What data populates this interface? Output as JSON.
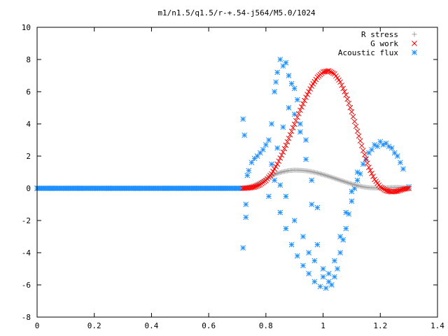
{
  "chart_data": {
    "type": "scatter",
    "title": "m1/n1.5/q1.5/r-+.54-j564/M5.0/1024",
    "xlim": [
      0,
      1.4
    ],
    "ylim": [
      -8,
      10
    ],
    "x_ticks": [
      "0",
      "0.2",
      "0.4",
      "0.6",
      "0.8",
      "1",
      "1.2",
      "1.4"
    ],
    "y_ticks": [
      "-8",
      "-6",
      "-4",
      "-2",
      "0",
      "2",
      "4",
      "6",
      "8",
      "10"
    ],
    "grid": false,
    "legend_position": "top-right",
    "series": [
      {
        "name": "R stress",
        "marker": "plus",
        "color": "#a0a0a0",
        "points": [
          [
            0.72,
            0.02
          ],
          [
            0.74,
            0.08
          ],
          [
            0.76,
            0.2
          ],
          [
            0.78,
            0.38
          ],
          [
            0.8,
            0.58
          ],
          [
            0.82,
            0.78
          ],
          [
            0.84,
            0.93
          ],
          [
            0.86,
            1.03
          ],
          [
            0.88,
            1.1
          ],
          [
            0.9,
            1.13
          ],
          [
            0.92,
            1.12
          ],
          [
            0.94,
            1.09
          ],
          [
            0.96,
            1.03
          ],
          [
            0.98,
            0.95
          ],
          [
            1.0,
            0.85
          ],
          [
            1.02,
            0.74
          ],
          [
            1.04,
            0.62
          ],
          [
            1.06,
            0.5
          ],
          [
            1.08,
            0.38
          ],
          [
            1.1,
            0.27
          ],
          [
            1.12,
            0.17
          ],
          [
            1.14,
            0.09
          ],
          [
            1.16,
            0.04
          ],
          [
            1.18,
            0.02
          ],
          [
            1.2,
            0.02
          ],
          [
            1.22,
            0.03
          ],
          [
            1.24,
            0.05
          ],
          [
            1.26,
            0.06
          ],
          [
            1.28,
            0.05
          ],
          [
            1.3,
            0.02
          ]
        ]
      },
      {
        "name": "G work",
        "marker": "cross",
        "color": "#ff0000",
        "points": [
          [
            0.72,
            0.0
          ],
          [
            0.74,
            0.02
          ],
          [
            0.76,
            0.08
          ],
          [
            0.78,
            0.22
          ],
          [
            0.8,
            0.48
          ],
          [
            0.82,
            0.9
          ],
          [
            0.84,
            1.5
          ],
          [
            0.86,
            2.25
          ],
          [
            0.88,
            3.1
          ],
          [
            0.9,
            3.98
          ],
          [
            0.92,
            4.85
          ],
          [
            0.94,
            5.65
          ],
          [
            0.96,
            6.35
          ],
          [
            0.98,
            6.9
          ],
          [
            1.0,
            7.22
          ],
          [
            1.02,
            7.3
          ],
          [
            1.04,
            7.1
          ],
          [
            1.06,
            6.6
          ],
          [
            1.08,
            5.8
          ],
          [
            1.1,
            4.75
          ],
          [
            1.12,
            3.55
          ],
          [
            1.14,
            2.35
          ],
          [
            1.16,
            1.3
          ],
          [
            1.18,
            0.55
          ],
          [
            1.2,
            0.08
          ],
          [
            1.22,
            -0.15
          ],
          [
            1.24,
            -0.22
          ],
          [
            1.26,
            -0.18
          ],
          [
            1.28,
            -0.06
          ],
          [
            1.3,
            0.0
          ]
        ]
      },
      {
        "name": "Acoustic flux",
        "marker": "star",
        "color": "#1e90ff",
        "points": [
          [
            0.0,
            0.0
          ],
          [
            0.05,
            0.0
          ],
          [
            0.1,
            0.0
          ],
          [
            0.15,
            0.0
          ],
          [
            0.2,
            0.0
          ],
          [
            0.25,
            0.0
          ],
          [
            0.3,
            0.0
          ],
          [
            0.35,
            0.0
          ],
          [
            0.4,
            0.0
          ],
          [
            0.45,
            0.0
          ],
          [
            0.5,
            0.0
          ],
          [
            0.55,
            0.0
          ],
          [
            0.6,
            0.0
          ],
          [
            0.65,
            0.0
          ],
          [
            0.7,
            0.0
          ],
          [
            0.72,
            -3.7
          ],
          [
            0.72,
            4.3
          ],
          [
            0.725,
            3.3
          ],
          [
            0.73,
            -1.8
          ],
          [
            0.73,
            -1.0
          ],
          [
            0.735,
            0.8
          ],
          [
            0.74,
            1.1
          ],
          [
            0.75,
            1.6
          ],
          [
            0.76,
            1.85
          ],
          [
            0.77,
            2.0
          ],
          [
            0.78,
            2.2
          ],
          [
            0.79,
            2.4
          ],
          [
            0.8,
            2.7
          ],
          [
            0.81,
            3.0
          ],
          [
            0.82,
            4.0
          ],
          [
            0.83,
            6.0
          ],
          [
            0.835,
            6.6
          ],
          [
            0.84,
            7.2
          ],
          [
            0.85,
            8.0
          ],
          [
            0.86,
            7.6
          ],
          [
            0.87,
            7.8
          ],
          [
            0.88,
            7.0
          ],
          [
            0.89,
            6.5
          ],
          [
            0.9,
            6.2
          ],
          [
            0.91,
            5.5
          ],
          [
            0.92,
            4.0
          ],
          [
            0.94,
            3.0
          ],
          [
            0.96,
            -1.0
          ],
          [
            0.98,
            -3.5
          ],
          [
            1.0,
            -5.0
          ],
          [
            1.02,
            -5.8
          ],
          [
            1.04,
            -5.5
          ],
          [
            1.06,
            -4.0
          ],
          [
            1.08,
            -2.5
          ],
          [
            1.1,
            -0.8
          ],
          [
            1.12,
            0.5
          ],
          [
            1.14,
            1.5
          ],
          [
            1.16,
            2.2
          ],
          [
            1.18,
            2.7
          ],
          [
            1.2,
            2.9
          ],
          [
            1.22,
            2.8
          ],
          [
            1.24,
            2.5
          ],
          [
            1.26,
            2.0
          ],
          [
            1.28,
            1.2
          ],
          [
            1.3,
            0.1
          ],
          [
            0.81,
            -0.5
          ],
          [
            0.83,
            0.5
          ],
          [
            0.85,
            -1.5
          ],
          [
            0.87,
            -2.5
          ],
          [
            0.89,
            -3.5
          ],
          [
            0.91,
            -4.2
          ],
          [
            0.93,
            -4.8
          ],
          [
            0.95,
            -5.3
          ],
          [
            0.97,
            -5.8
          ],
          [
            0.99,
            -6.1
          ],
          [
            1.01,
            -6.2
          ],
          [
            1.03,
            -6.0
          ],
          [
            1.05,
            -5.0
          ],
          [
            1.07,
            -3.2
          ],
          [
            1.09,
            -1.6
          ],
          [
            1.11,
            0.0
          ],
          [
            1.13,
            0.9
          ],
          [
            0.82,
            1.5
          ],
          [
            0.84,
            2.5
          ],
          [
            0.86,
            3.8
          ],
          [
            0.88,
            5.0
          ],
          [
            0.9,
            4.6
          ],
          [
            0.92,
            3.5
          ],
          [
            0.94,
            1.8
          ],
          [
            0.96,
            0.5
          ],
          [
            0.98,
            -1.2
          ],
          [
            0.85,
            0.2
          ],
          [
            0.87,
            -0.5
          ],
          [
            0.9,
            -2.0
          ],
          [
            0.93,
            -3.0
          ],
          [
            0.95,
            -4.0
          ],
          [
            0.97,
            -4.5
          ],
          [
            1.0,
            -5.5
          ],
          [
            1.02,
            -5.3
          ],
          [
            1.04,
            -4.5
          ],
          [
            1.06,
            -3.0
          ],
          [
            1.08,
            -1.5
          ],
          [
            1.1,
            -0.2
          ],
          [
            1.12,
            1.0
          ],
          [
            1.15,
            1.8
          ],
          [
            1.17,
            2.4
          ],
          [
            1.19,
            2.6
          ],
          [
            1.21,
            2.7
          ],
          [
            1.23,
            2.6
          ],
          [
            1.25,
            2.2
          ],
          [
            1.27,
            1.6
          ]
        ]
      }
    ]
  }
}
